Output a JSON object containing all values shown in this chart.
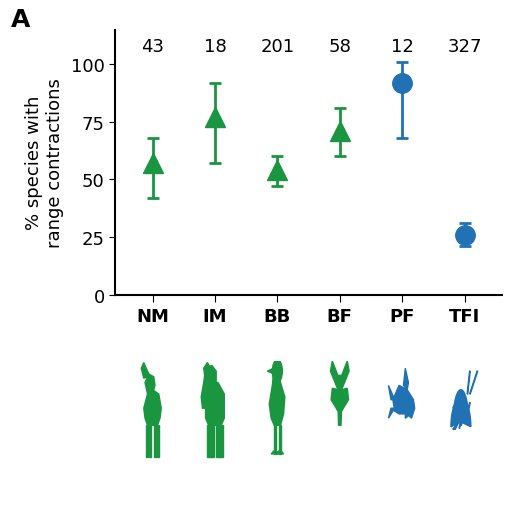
{
  "categories": [
    "NM",
    "IM",
    "BB",
    "BF",
    "PF",
    "TFI"
  ],
  "counts": [
    "43",
    "18",
    "201",
    "58",
    "12",
    "327"
  ],
  "values": [
    57,
    77,
    54,
    71,
    92,
    26
  ],
  "yerr_low": [
    15,
    20,
    7,
    11,
    24,
    5
  ],
  "yerr_high": [
    11,
    15,
    6,
    10,
    9,
    5
  ],
  "markers": [
    "^",
    "^",
    "^",
    "^",
    "o",
    "o"
  ],
  "colors": [
    "#1a9641",
    "#1a9641",
    "#1a9641",
    "#1a9641",
    "#2171b5",
    "#2171b5"
  ],
  "green": "#1a9641",
  "blue": "#2171b5",
  "title_label": "A",
  "ylabel": "% species with\nrange contractions",
  "ylim": [
    0,
    115
  ],
  "yticks": [
    0,
    25,
    50,
    75,
    100
  ],
  "marker_size": 14,
  "linewidth": 2.0,
  "count_fontsize": 13,
  "label_fontsize": 13,
  "ylabel_fontsize": 13,
  "title_fontsize": 18,
  "capsize": 4,
  "fig_width": 5.23,
  "fig_height": 5.1,
  "dpi": 100
}
